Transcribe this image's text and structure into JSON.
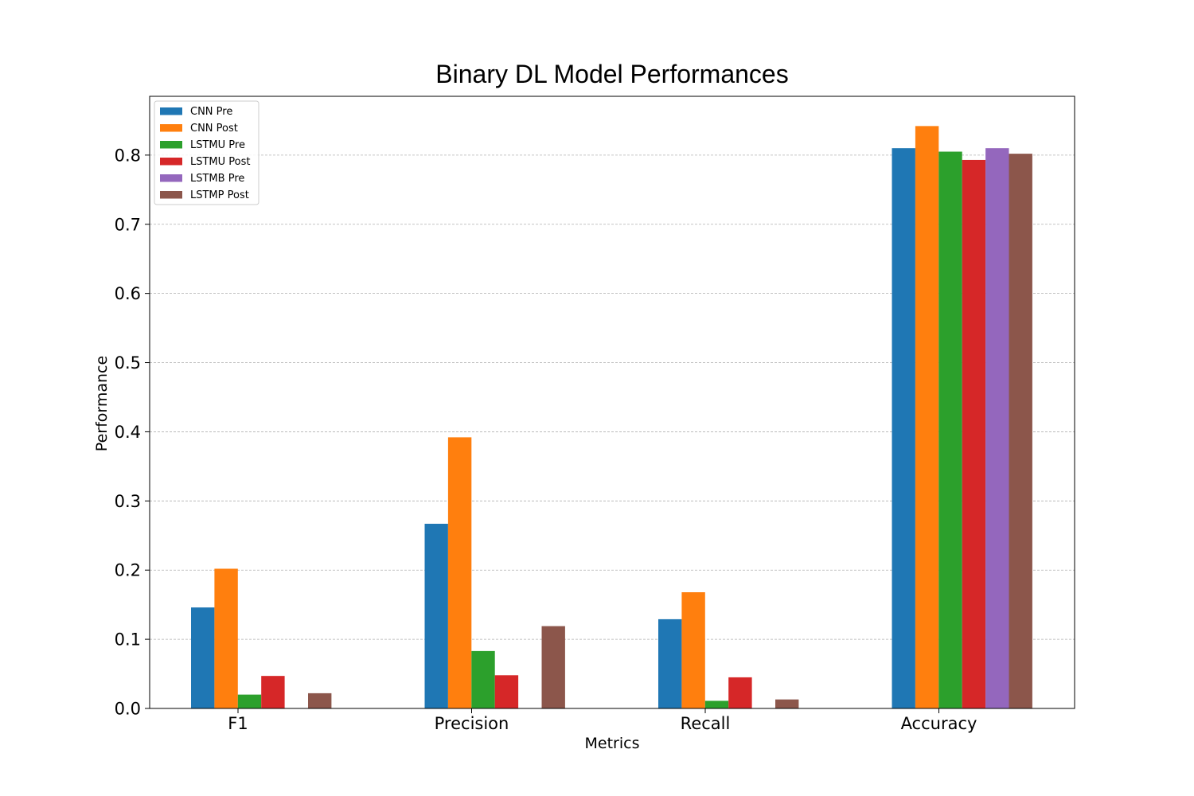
{
  "chart_data": {
    "type": "bar",
    "title": "Binary DL Model Performances",
    "xlabel": "Metrics",
    "ylabel": "Performance",
    "categories": [
      "F1",
      "Precision",
      "Recall",
      "Accuracy"
    ],
    "ylim": [
      0,
      0.885
    ],
    "yticks": [
      "0.0",
      "0.1",
      "0.2",
      "0.3",
      "0.4",
      "0.5",
      "0.6",
      "0.7",
      "0.8"
    ],
    "grid": "horizontal dashed",
    "legend_position": "top-left",
    "series": [
      {
        "name": "CNN Pre",
        "color": "#1f77b4",
        "values": [
          0.146,
          0.267,
          0.129,
          0.81
        ]
      },
      {
        "name": "CNN Post",
        "color": "#ff7f0e",
        "values": [
          0.202,
          0.392,
          0.168,
          0.842
        ]
      },
      {
        "name": "LSTMU Pre",
        "color": "#2ca02c",
        "values": [
          0.02,
          0.083,
          0.011,
          0.805
        ]
      },
      {
        "name": "LSTMU Post",
        "color": "#d62728",
        "values": [
          0.047,
          0.048,
          0.045,
          0.793
        ]
      },
      {
        "name": "LSTMB Pre",
        "color": "#9467bd",
        "values": [
          0.0,
          0.0,
          0.0,
          0.81
        ]
      },
      {
        "name": "LSTMP Post",
        "color": "#8c564b",
        "values": [
          0.022,
          0.119,
          0.013,
          0.802
        ]
      }
    ]
  }
}
